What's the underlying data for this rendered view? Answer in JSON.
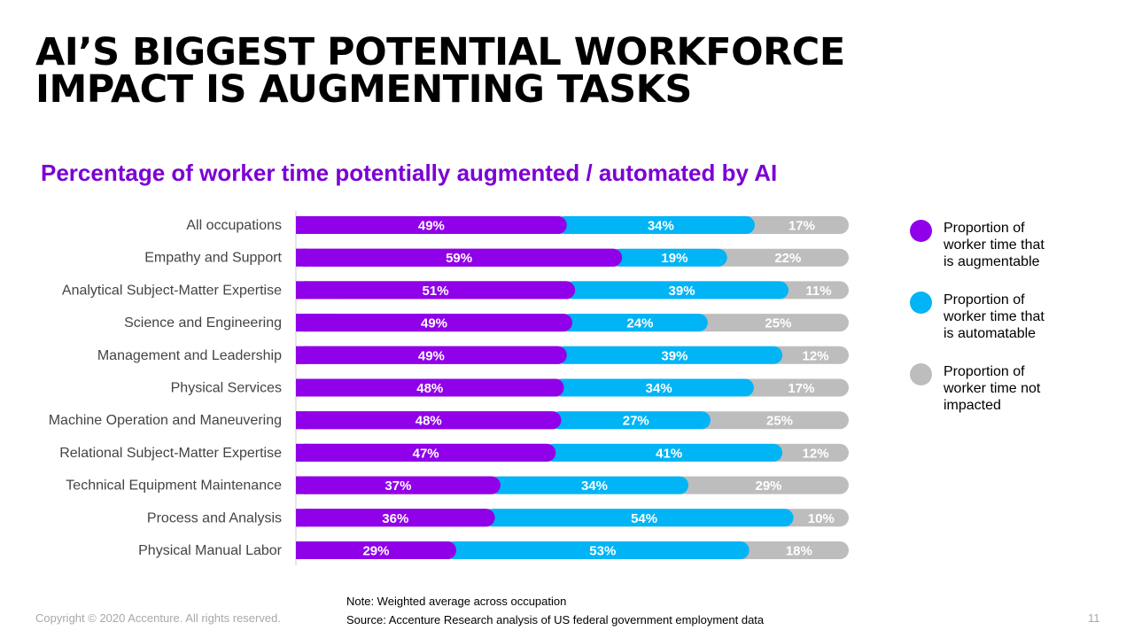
{
  "page": {
    "title_line1": "AI’S BIGGEST POTENTIAL WORKFORCE",
    "title_line2": "IMPACT IS AUGMENTING TASKS",
    "subtitle": "Percentage of worker time potentially augmented / automated by AI",
    "note": "Note: Weighted average across occupation",
    "source": "Source: Accenture Research analysis of US federal government employment data",
    "copyright": "Copyright © 2020 Accenture. All rights reserved.",
    "page_number": "11"
  },
  "chart_data": {
    "type": "bar",
    "orientation": "horizontal",
    "stacked": true,
    "categories": [
      "All occupations",
      "Empathy and Support",
      "Analytical Subject-Matter Expertise",
      "Science and Engineering",
      "Management and Leadership",
      "Physical Services",
      "Machine Operation and Maneuvering",
      "Relational Subject-Matter Expertise",
      "Technical Equipment Maintenance",
      "Process and Analysis",
      "Physical Manual Labor"
    ],
    "series": [
      {
        "name": "Proportion of worker time that is augmentable",
        "color": "#9000e8",
        "values": [
          49,
          59,
          51,
          49,
          49,
          48,
          48,
          47,
          37,
          36,
          29
        ]
      },
      {
        "name": "Proportion of worker time that is automatable",
        "color": "#00b4f5",
        "values": [
          34,
          19,
          39,
          24,
          39,
          34,
          27,
          41,
          34,
          54,
          53
        ]
      },
      {
        "name": "Proportion of worker time not impacted",
        "color": "#bdbdbd",
        "values": [
          17,
          22,
          11,
          25,
          12,
          17,
          25,
          12,
          29,
          10,
          18
        ]
      }
    ],
    "value_suffix": "%",
    "legend_position": "right",
    "grid": false
  }
}
